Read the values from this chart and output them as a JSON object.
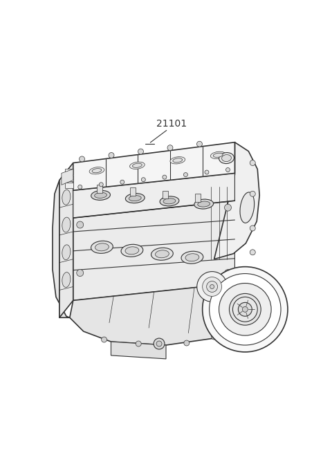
{
  "background_color": "#ffffff",
  "line_color": "#333333",
  "label_text": "21101",
  "fig_width": 4.8,
  "fig_height": 6.55,
  "dpi": 100,
  "engine_scale": 1.0
}
